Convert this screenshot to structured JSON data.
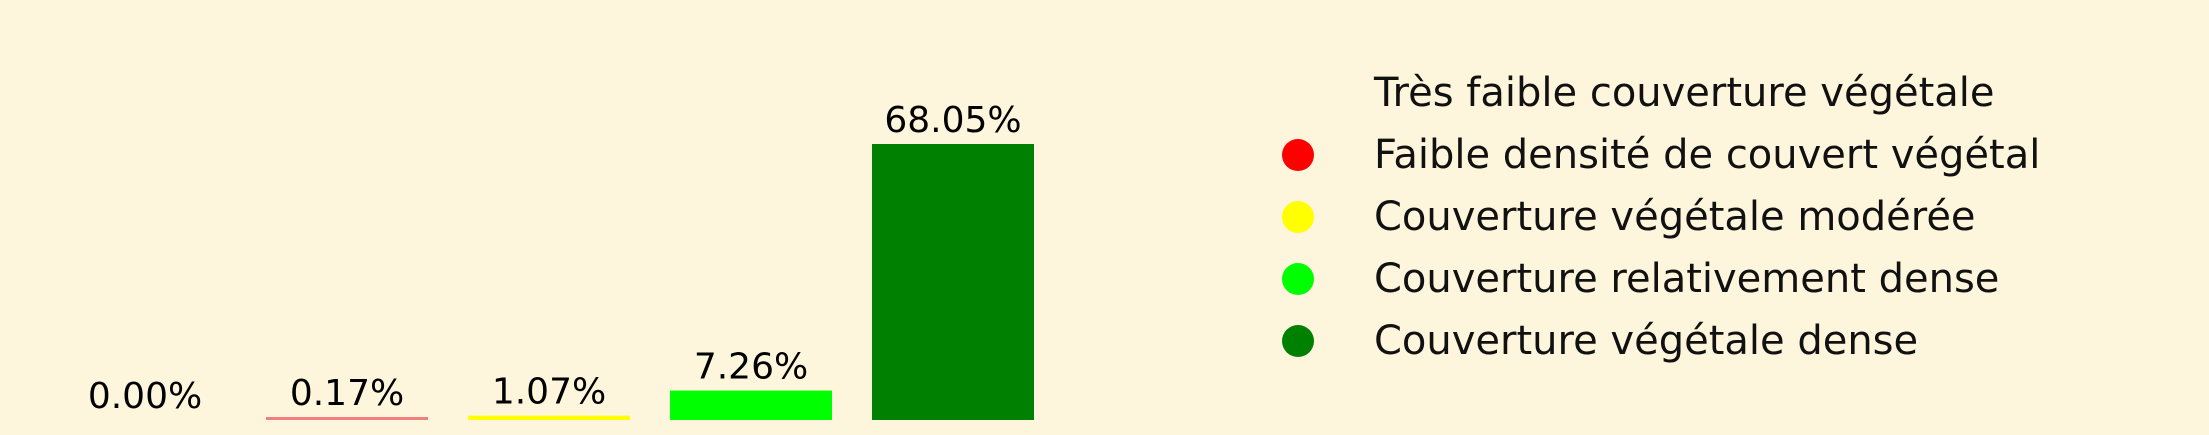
{
  "chart_data": {
    "type": "bar",
    "categories": [
      "Très faible couverture végétale",
      "Faible densité de couvert végétal",
      "Couverture végétale modérée",
      "Couverture relativement dense",
      "Couverture végétale dense"
    ],
    "values": [
      0.0,
      0.17,
      1.07,
      7.26,
      68.05
    ],
    "value_labels": [
      "0.00%",
      "0.17%",
      "1.07%",
      "7.26%",
      "68.05%"
    ],
    "colors": [
      "#fdf5dc",
      "#f08080",
      "#ffff00",
      "#00ff00",
      "#008000"
    ],
    "legend_dot_colors": [
      "#fdf5dc",
      "#ff0000",
      "#ffff00",
      "#00ff00",
      "#008000"
    ],
    "unit": "%",
    "ylim": [
      0,
      68.05
    ],
    "grid": false,
    "axes_visible": false,
    "legend_position": "right"
  }
}
